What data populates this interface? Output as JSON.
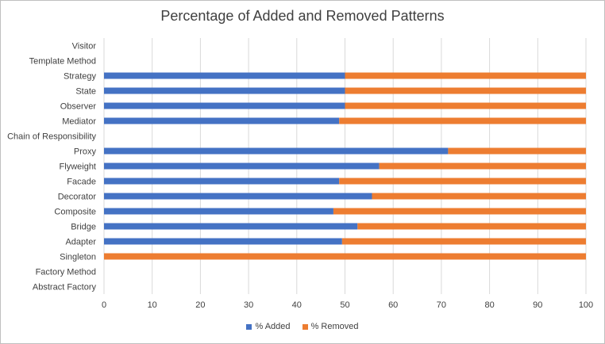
{
  "chart_data": {
    "type": "bar",
    "orientation": "horizontal",
    "stacked": true,
    "title": "Percentage of Added and Removed Patterns",
    "categories": [
      "Visitor",
      "Template Method",
      "Strategy",
      "State",
      "Observer",
      "Mediator",
      "Chain of Responsibility",
      "Proxy",
      "Flyweight",
      "Facade",
      "Decorator",
      "Composite",
      "Bridge",
      "Adapter",
      "Singleton",
      "Factory Method",
      "Abstract Factory"
    ],
    "series": [
      {
        "name": "% Added",
        "color": "#4472C4",
        "values": [
          0,
          0,
          50,
          50,
          50,
          48.8,
          0,
          71.4,
          57.1,
          48.8,
          55.6,
          47.6,
          52.6,
          49.4,
          0,
          0,
          0
        ]
      },
      {
        "name": "% Removed",
        "color": "#ED7D31",
        "values": [
          0,
          0,
          50,
          50,
          50,
          51.2,
          0,
          28.6,
          42.9,
          51.2,
          44.4,
          52.4,
          47.4,
          50.6,
          100,
          0,
          0
        ]
      }
    ],
    "xticks": [
      0,
      10,
      20,
      30,
      40,
      50,
      60,
      70,
      80,
      90,
      100
    ],
    "xlim": [
      0,
      100
    ],
    "grid": "vertical",
    "legend_position": "bottom"
  }
}
